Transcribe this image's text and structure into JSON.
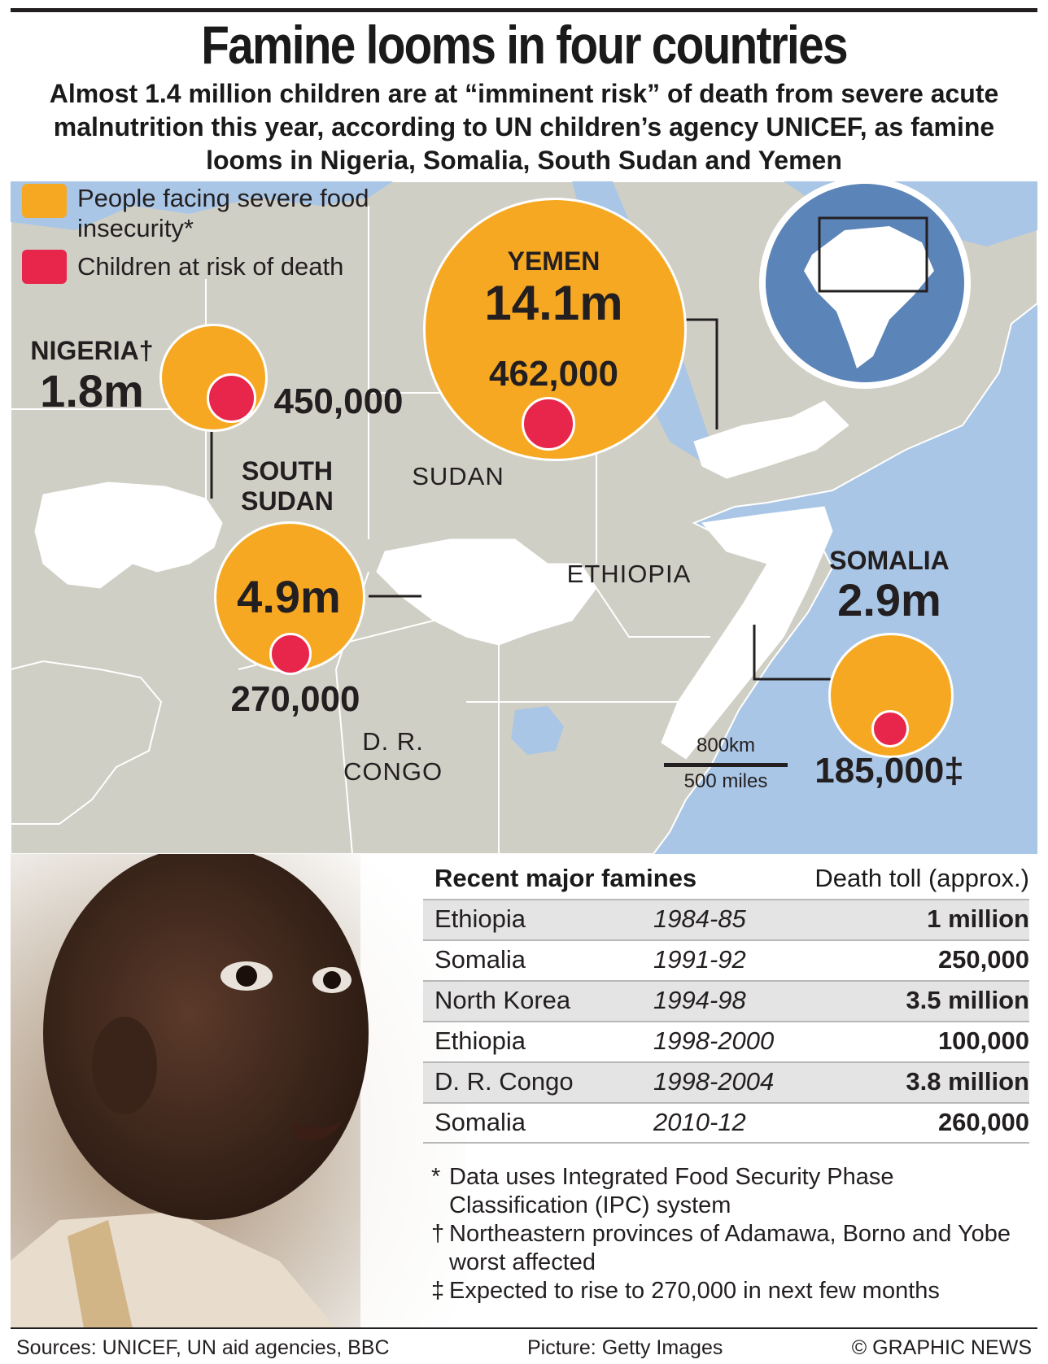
{
  "header": {
    "title": "Famine looms in four countries",
    "subtitle": "Almost 1.4 million children are at “imminent risk” of death from severe acute malnutrition this year, according to UN children’s agency UNICEF, as famine looms in Nigeria, Somalia, South Sudan and Yemen"
  },
  "legend": {
    "food_insecurity": "People facing severe food insecurity*",
    "children_risk": "Children at risk of death"
  },
  "colors": {
    "food_insecurity": "#f6a823",
    "children_risk": "#e8254b",
    "sea": "#a9c6e6",
    "land": "#d0cfc6",
    "highlight_land": "#ffffff"
  },
  "map_labels": {
    "sudan": "SUDAN",
    "ethiopia": "ETHIOPIA",
    "dr_congo_line1": "D. R.",
    "dr_congo_line2": "CONGO"
  },
  "countries": {
    "nigeria": {
      "name": "NIGERIA†",
      "people": "1.8m",
      "children": "450,000"
    },
    "yemen": {
      "name": "YEMEN",
      "people": "14.1m",
      "children": "462,000"
    },
    "south_sudan": {
      "name_line1": "SOUTH",
      "name_line2": "SUDAN",
      "people": "4.9m",
      "children": "270,000"
    },
    "somalia": {
      "name": "SOMALIA",
      "people": "2.9m",
      "children": "185,000‡"
    }
  },
  "scale": {
    "km": "800km",
    "miles": "500 miles"
  },
  "table": {
    "heading": "Recent major famines",
    "heading_right": "Death toll (approx.)",
    "rows": [
      {
        "country": "Ethiopia",
        "years": "1984-85",
        "toll": "1 million"
      },
      {
        "country": "Somalia",
        "years": "1991-92",
        "toll": "250,000"
      },
      {
        "country": "North Korea",
        "years": "1994-98",
        "toll": "3.5 million"
      },
      {
        "country": "Ethiopia",
        "years": "1998-2000",
        "toll": "100,000"
      },
      {
        "country": "D. R. Congo",
        "years": "1998-2004",
        "toll": "3.8 million"
      },
      {
        "country": "Somalia",
        "years": "2010-12",
        "toll": "260,000"
      }
    ]
  },
  "notes": [
    {
      "mark": "*",
      "text": "Data uses Integrated Food Security Phase Classification (IPC) system"
    },
    {
      "mark": "†",
      "text": "Northeastern provinces of Adamawa, Borno and Yobe worst affected"
    },
    {
      "mark": "‡",
      "text": "Expected to rise to 270,000 in next few months"
    }
  ],
  "footer": {
    "sources": "Sources: UNICEF, UN aid agencies, BBC",
    "picture": "Picture: Getty Images",
    "copyright": "© GRAPHIC NEWS"
  }
}
